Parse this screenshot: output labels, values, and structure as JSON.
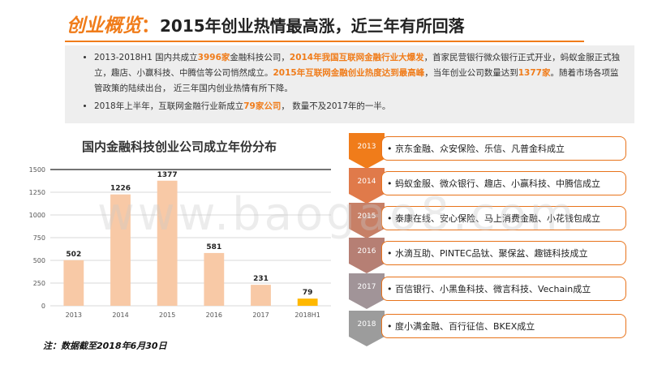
{
  "header": {
    "title_accent": "创业概览",
    "title_colon": "：",
    "title_main": "2015年创业热情最高涨，近三年有所回落"
  },
  "summary": {
    "b1_p1": "2013-2018H1 国内共成立",
    "b1_hl1": "3996家",
    "b1_p2": "金融科技公司，",
    "b1_hl2": "2014年我国互联网金融行业大爆发",
    "b1_p3": "，首家民营银行微众银行正式开业，蚂蚁金服正式独立，趣店、小赢科技、中腾信等公司悄然成立。",
    "b1_hl3": "2015年互联网金融创业热度达到最高峰",
    "b1_p4": "，当年创业公司数量达到",
    "b1_hl4": "1377家",
    "b1_p5": "。随着市场各项监管政策的陆续出台，  近三年国内创业热情有所下降。",
    "b2_p1": "2018年上半年，互联网金融行业新成立",
    "b2_hl1": "79家公司",
    "b2_p2": "，  数量不及2017年的一半。"
  },
  "chart_data": {
    "type": "bar",
    "title": "国内金融科技创业公司成立年份分布",
    "categories": [
      "2013",
      "2014",
      "2015",
      "2016",
      "2017",
      "2018H1"
    ],
    "values": [
      502,
      1226,
      1377,
      581,
      231,
      79
    ],
    "ylim": [
      0,
      1500
    ],
    "yticks": [
      0,
      250,
      500,
      750,
      1000,
      1250,
      1500
    ],
    "bar_color": "#f8c9a6",
    "highlight_color": "#ffb800",
    "highlight_index": 5,
    "grid": true
  },
  "note": "注：数据截至2018年6月30日",
  "timeline": [
    {
      "year": "2013",
      "text": "• 京东金融、众安保险、乐信、凡普金科成立",
      "color": "#f07c1a"
    },
    {
      "year": "2014",
      "text": "• 蚂蚁金服、微众银行、趣店、小赢科技、中腾信成立",
      "color": "#e07a4a"
    },
    {
      "year": "2015",
      "text": "• 泰康在线、安心保险、马上消费金融、小花钱包成立",
      "color": "#c78067"
    },
    {
      "year": "2016",
      "text": "• 水滴互助、PINTEC品钛、聚保盆、趣链科技成立",
      "color": "#b67f74"
    },
    {
      "year": "2017",
      "text": "• 百信银行、小黑鱼科技、微言科技、Vechain成立",
      "color": "#a19498"
    },
    {
      "year": "2018",
      "text": "• 度小满金融、百行征信、BKEX成立",
      "color": "#9c9c9c"
    }
  ],
  "watermark": "www.baogao8.com"
}
